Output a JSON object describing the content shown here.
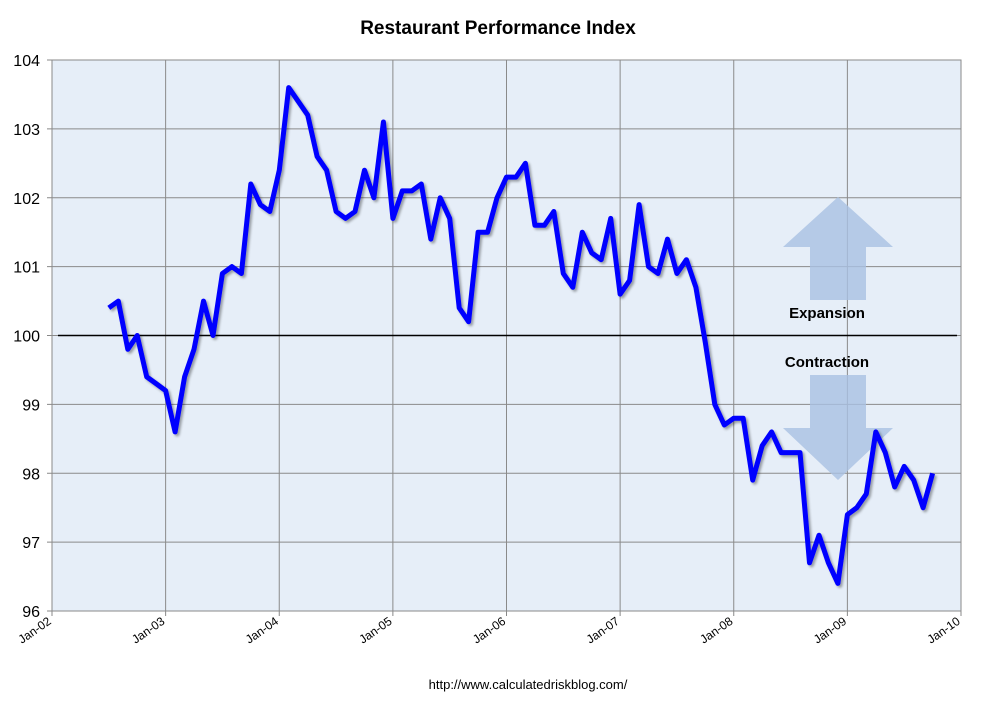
{
  "chart_data": {
    "type": "line",
    "title": "Restaurant Performance Index",
    "xlabel": "",
    "ylabel": "",
    "ylim": [
      96,
      104
    ],
    "yticks": [
      "96",
      "97",
      "98",
      "99",
      "100",
      "101",
      "102",
      "103",
      "104"
    ],
    "xticks": [
      "Jan-02",
      "Jan-03",
      "Jan-04",
      "Jan-05",
      "Jan-06",
      "Jan-07",
      "Jan-08",
      "Jan-09",
      "Jan-10"
    ],
    "xlim": [
      "2002-01",
      "2010-01"
    ],
    "grid": true,
    "reference_line": 100,
    "annotations": {
      "expansion": "Expansion",
      "contraction": "Contraction"
    },
    "source": "http://www.calculatedriskblog.com/",
    "line_color": "#0000ff",
    "start": "2002-07",
    "series": [
      {
        "values": [
          100.4,
          100.5,
          99.8,
          100.0,
          99.4,
          99.3,
          99.2,
          98.6,
          99.4,
          99.8,
          100.5,
          100.0,
          100.9,
          101.0,
          100.9,
          102.2,
          101.9,
          101.8,
          102.4,
          103.6,
          103.4,
          103.2,
          102.6,
          102.4,
          101.8,
          101.7,
          101.8,
          102.4,
          102.0,
          103.1,
          101.7,
          102.1,
          102.1,
          102.2,
          101.4,
          102.0,
          101.7,
          100.4,
          100.2,
          101.5,
          101.5,
          102.0,
          102.3,
          102.3,
          102.5,
          101.6,
          101.6,
          101.8,
          100.9,
          100.7,
          101.5,
          101.2,
          101.1,
          101.7,
          100.6,
          100.8,
          101.9,
          101.0,
          100.9,
          101.4,
          100.9,
          101.1,
          100.7,
          99.9,
          99.0,
          98.7,
          98.8,
          98.8,
          97.9,
          98.4,
          98.6,
          98.3,
          98.3,
          98.3,
          96.7,
          97.1,
          96.7,
          96.4,
          97.4,
          97.5,
          97.7,
          98.6,
          98.3,
          97.8,
          98.1,
          97.9,
          97.5,
          98.0
        ]
      }
    ]
  }
}
